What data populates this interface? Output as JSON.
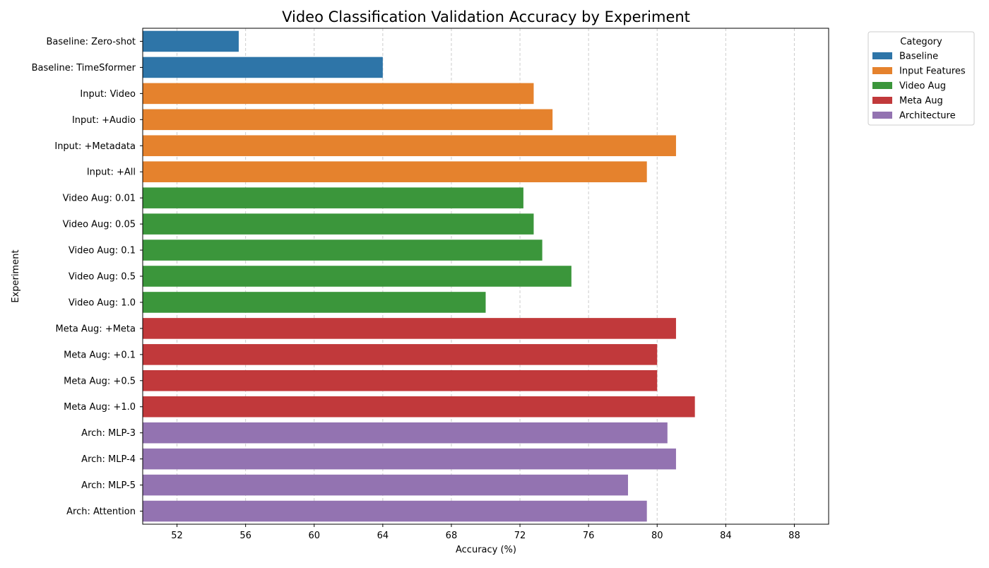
{
  "chart_data": {
    "type": "bar",
    "orientation": "horizontal",
    "title": "Video Classification Validation Accuracy by Experiment",
    "xlabel": "Accuracy (%)",
    "ylabel": "Experiment",
    "xlim": [
      50,
      90
    ],
    "xticks": [
      52,
      56,
      60,
      64,
      68,
      72,
      76,
      80,
      84,
      88
    ],
    "grid": "vertical-dashed",
    "legend": {
      "title": "Category",
      "placement": "upper-right-outside",
      "entries": [
        {
          "name": "Baseline",
          "color": "#2e75a8"
        },
        {
          "name": "Input Features",
          "color": "#e5822d"
        },
        {
          "name": "Video Aug",
          "color": "#3b963b"
        },
        {
          "name": "Meta Aug",
          "color": "#c1393b"
        },
        {
          "name": "Architecture",
          "color": "#9373b1"
        }
      ]
    },
    "bars": [
      {
        "label": "Baseline: Zero-shot",
        "value": 55.6,
        "category": "Baseline"
      },
      {
        "label": "Baseline: TimeSformer",
        "value": 64.0,
        "category": "Baseline"
      },
      {
        "label": "Input: Video",
        "value": 72.8,
        "category": "Input Features"
      },
      {
        "label": "Input: +Audio",
        "value": 73.9,
        "category": "Input Features"
      },
      {
        "label": "Input: +Metadata",
        "value": 81.1,
        "category": "Input Features"
      },
      {
        "label": "Input: +All",
        "value": 79.4,
        "category": "Input Features"
      },
      {
        "label": "Video Aug: 0.01",
        "value": 72.2,
        "category": "Video Aug"
      },
      {
        "label": "Video Aug: 0.05",
        "value": 72.8,
        "category": "Video Aug"
      },
      {
        "label": "Video Aug: 0.1",
        "value": 73.3,
        "category": "Video Aug"
      },
      {
        "label": "Video Aug: 0.5",
        "value": 75.0,
        "category": "Video Aug"
      },
      {
        "label": "Video Aug: 1.0",
        "value": 70.0,
        "category": "Video Aug"
      },
      {
        "label": "Meta Aug: +Meta",
        "value": 81.1,
        "category": "Meta Aug"
      },
      {
        "label": "Meta Aug: +0.1",
        "value": 80.0,
        "category": "Meta Aug"
      },
      {
        "label": "Meta Aug: +0.5",
        "value": 80.0,
        "category": "Meta Aug"
      },
      {
        "label": "Meta Aug: +1.0",
        "value": 82.2,
        "category": "Meta Aug"
      },
      {
        "label": "Arch: MLP-3",
        "value": 80.6,
        "category": "Architecture"
      },
      {
        "label": "Arch: MLP-4",
        "value": 81.1,
        "category": "Architecture"
      },
      {
        "label": "Arch: MLP-5",
        "value": 78.3,
        "category": "Architecture"
      },
      {
        "label": "Arch: Attention",
        "value": 79.4,
        "category": "Architecture"
      }
    ]
  }
}
